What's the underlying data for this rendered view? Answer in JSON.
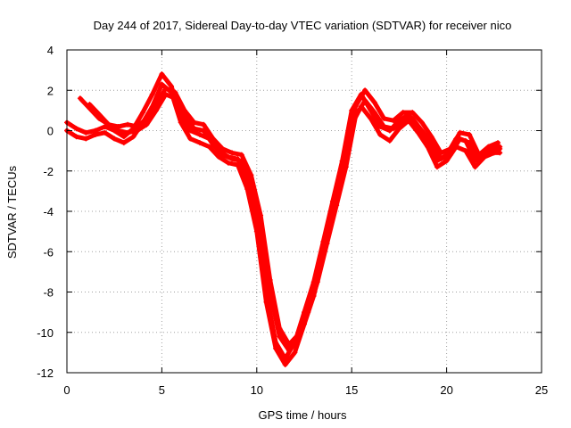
{
  "chart_data": {
    "type": "scatter",
    "title": "Day 244 of 2017, Sidereal Day-to-day VTEC variation (SDTVAR) for receiver nico",
    "xlabel": "GPS time / hours",
    "ylabel": "SDTVAR / TECUs",
    "xlim": [
      0,
      25
    ],
    "ylim": [
      -12,
      4
    ],
    "xticks": [
      0,
      5,
      10,
      15,
      20,
      25
    ],
    "yticks": [
      -12,
      -10,
      -8,
      -6,
      -4,
      -2,
      0,
      2,
      4
    ],
    "grid": true,
    "marker": "plus",
    "series": [
      {
        "name": "satellite track 1",
        "color": "#ff0000",
        "x": [
          0.0,
          0.5,
          1.0,
          1.5,
          2.0,
          2.5,
          3.0,
          3.5,
          4.0,
          4.5,
          5.0,
          5.5,
          6.0,
          6.5,
          7.0,
          7.5,
          8.0,
          8.5,
          9.0,
          9.5,
          10.0,
          10.5,
          11.0,
          11.5,
          12.0,
          12.5,
          13.0,
          13.5,
          14.0,
          14.5,
          15.0,
          15.5,
          16.0,
          16.5,
          17.0,
          17.5,
          18.0,
          18.5,
          19.0,
          19.5,
          20.0,
          20.5,
          21.0,
          21.5,
          22.0,
          22.5,
          22.8
        ],
        "y": [
          0.4,
          0.1,
          -0.1,
          0.0,
          0.2,
          0.0,
          -0.3,
          0.1,
          0.9,
          1.8,
          2.8,
          2.2,
          0.8,
          0.0,
          -0.2,
          -0.4,
          -1.0,
          -1.3,
          -1.4,
          -2.5,
          -4.5,
          -8.0,
          -10.5,
          -11.3,
          -10.5,
          -9.0,
          -7.5,
          -5.5,
          -3.5,
          -1.5,
          1.0,
          1.8,
          1.0,
          0.2,
          0.0,
          0.5,
          0.8,
          0.2,
          -0.5,
          -1.5,
          -1.2,
          -0.4,
          -0.5,
          -1.5,
          -1.0,
          -0.8,
          -0.8
        ]
      },
      {
        "name": "satellite track 2",
        "color": "#ff0000",
        "x": [
          0.0,
          0.5,
          1.0,
          1.5,
          2.0,
          2.5,
          3.0,
          3.5,
          4.0,
          4.5,
          5.0,
          5.5,
          6.0,
          6.5,
          7.0,
          7.5,
          8.0,
          8.5,
          9.0,
          9.5,
          10.0,
          10.5,
          11.0,
          11.5,
          12.0,
          12.5,
          13.0,
          13.5,
          14.0,
          14.5,
          15.0,
          15.5,
          16.0,
          16.5,
          17.0,
          17.5,
          18.0,
          18.5,
          19.0,
          19.5,
          20.0,
          20.5,
          21.0,
          21.5,
          22.0,
          22.5,
          22.8
        ],
        "y": [
          0.0,
          -0.3,
          -0.4,
          -0.2,
          -0.1,
          -0.4,
          -0.6,
          -0.3,
          0.4,
          1.2,
          2.3,
          1.9,
          0.4,
          -0.4,
          -0.6,
          -0.8,
          -1.3,
          -1.6,
          -1.7,
          -2.9,
          -5.0,
          -8.5,
          -10.8,
          -11.6,
          -11.0,
          -9.6,
          -8.2,
          -6.2,
          -4.3,
          -2.3,
          0.3,
          1.2,
          0.6,
          -0.2,
          -0.5,
          0.1,
          0.5,
          -0.1,
          -0.8,
          -1.8,
          -1.5,
          -0.8,
          -1.0,
          -1.8,
          -1.3,
          -1.1,
          -1.1
        ]
      },
      {
        "name": "satellite track 3",
        "color": "#ff0000",
        "x": [
          0.7,
          1.2,
          1.7,
          2.2,
          2.7,
          3.2,
          3.7,
          4.2,
          4.7,
          5.2,
          5.7,
          6.2,
          6.7,
          7.2,
          7.7,
          8.2,
          8.7,
          9.2,
          9.7,
          10.2,
          10.7,
          11.2,
          11.7,
          12.2,
          12.7,
          13.2,
          13.7,
          14.2,
          14.7,
          15.2,
          15.7,
          16.2,
          16.7,
          17.2,
          17.7,
          18.2,
          18.7,
          19.2,
          19.7,
          20.2,
          20.7,
          21.2,
          21.7,
          22.2,
          22.7
        ],
        "y": [
          1.6,
          1.1,
          0.6,
          0.3,
          0.2,
          0.3,
          0.2,
          0.6,
          1.3,
          2.1,
          1.9,
          1.0,
          0.4,
          0.3,
          -0.4,
          -0.9,
          -1.1,
          -1.2,
          -2.2,
          -4.2,
          -7.4,
          -9.8,
          -10.6,
          -10.1,
          -8.7,
          -7.1,
          -5.2,
          -3.3,
          -1.3,
          1.2,
          2.0,
          1.4,
          0.6,
          0.5,
          0.9,
          0.9,
          0.4,
          -0.3,
          -1.1,
          -0.9,
          -0.1,
          -0.2,
          -1.2,
          -0.8,
          -0.6
        ]
      },
      {
        "name": "satellite track 4",
        "color": "#ff0000",
        "x": [
          1.2,
          1.7,
          2.2,
          2.7,
          3.2,
          3.7,
          4.2,
          4.7,
          5.2,
          5.7,
          6.2,
          6.7,
          7.2,
          7.7,
          8.2,
          8.7,
          9.2,
          9.7,
          10.2,
          10.7,
          11.2,
          11.7,
          12.2,
          12.7,
          13.2,
          13.7,
          14.2,
          14.7,
          15.2,
          15.7,
          16.2,
          16.7,
          17.2,
          17.7,
          18.2,
          18.7,
          19.2,
          19.7,
          20.2,
          20.7,
          21.2,
          21.7,
          22.2,
          22.8
        ],
        "y": [
          1.3,
          0.8,
          0.3,
          0.0,
          -0.1,
          0.0,
          0.3,
          1.0,
          1.8,
          1.6,
          0.7,
          0.1,
          0.0,
          -0.7,
          -1.2,
          -1.4,
          -1.5,
          -2.6,
          -4.7,
          -8.0,
          -10.2,
          -10.9,
          -10.3,
          -9.0,
          -7.5,
          -5.6,
          -3.7,
          -1.8,
          0.7,
          1.5,
          0.9,
          0.2,
          0.1,
          0.5,
          0.6,
          0.0,
          -0.6,
          -1.4,
          -1.2,
          -0.4,
          -0.6,
          -1.5,
          -1.1,
          -0.9
        ]
      }
    ]
  }
}
